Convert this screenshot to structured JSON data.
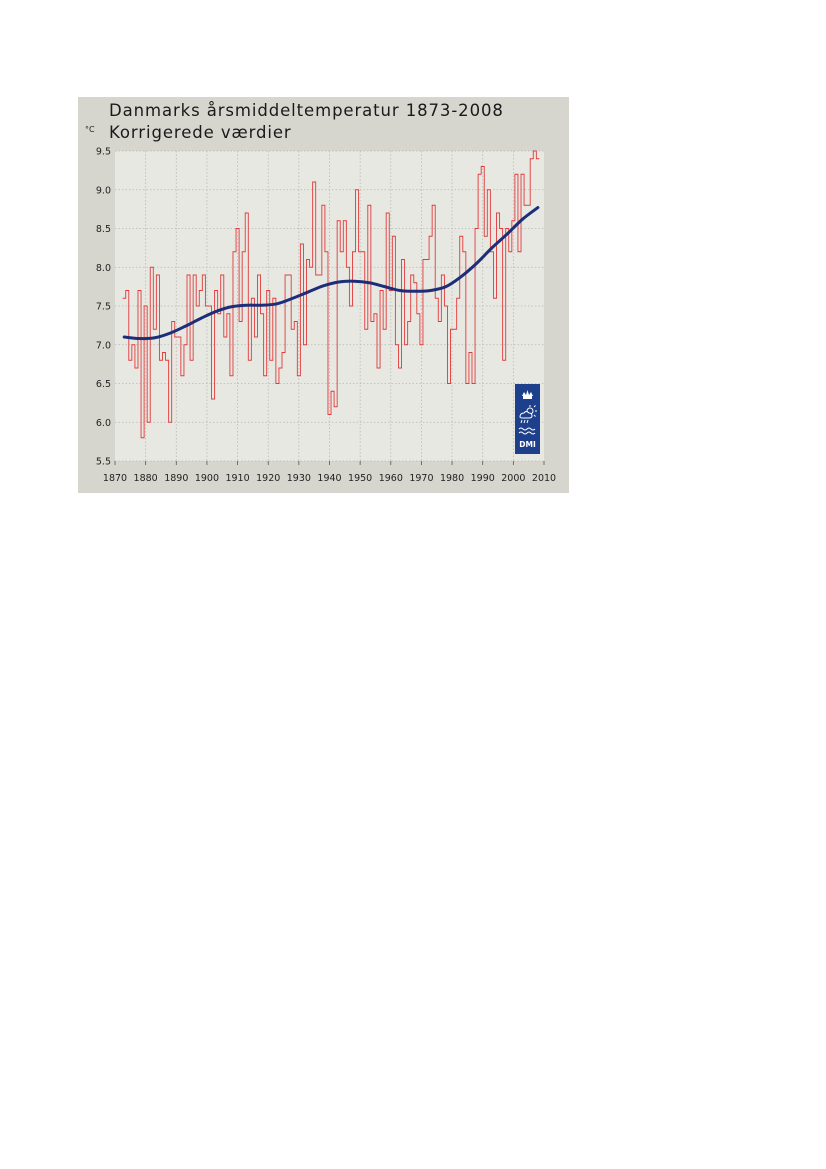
{
  "chart_data": {
    "type": "line",
    "title": "Danmarks årsmiddeltemperatur 1873-2008",
    "subtitle": "Korrigerede værdier",
    "ylabel": "°C",
    "xlabel": "",
    "xlim": [
      1870,
      2010
    ],
    "ylim": [
      5.5,
      9.5
    ],
    "x_ticks": [
      "1870",
      "1880",
      "1890",
      "1900",
      "1910",
      "1920",
      "1930",
      "1940",
      "1950",
      "1960",
      "1970",
      "1980",
      "1990",
      "2000",
      "2010"
    ],
    "y_ticks": [
      "9.5",
      "9.0",
      "8.5",
      "8.0",
      "7.5",
      "7.0",
      "6.5",
      "6.0",
      "5.5"
    ],
    "grid": true,
    "logo_text": "DMI",
    "series": [
      {
        "name": "",
        "style": "step",
        "color": "#e23a3a",
        "x": [
          1873,
          1874,
          1875,
          1876,
          1877,
          1878,
          1879,
          1880,
          1881,
          1882,
          1883,
          1884,
          1885,
          1886,
          1887,
          1888,
          1889,
          1890,
          1891,
          1892,
          1893,
          1894,
          1895,
          1896,
          1897,
          1898,
          1899,
          1900,
          1901,
          1902,
          1903,
          1904,
          1905,
          1906,
          1907,
          1908,
          1909,
          1910,
          1911,
          1912,
          1913,
          1914,
          1915,
          1916,
          1917,
          1918,
          1919,
          1920,
          1921,
          1922,
          1923,
          1924,
          1925,
          1926,
          1927,
          1928,
          1929,
          1930,
          1931,
          1932,
          1933,
          1934,
          1935,
          1936,
          1937,
          1938,
          1939,
          1940,
          1941,
          1942,
          1943,
          1944,
          1945,
          1946,
          1947,
          1948,
          1949,
          1950,
          1951,
          1952,
          1953,
          1954,
          1955,
          1956,
          1957,
          1958,
          1959,
          1960,
          1961,
          1962,
          1963,
          1964,
          1965,
          1966,
          1967,
          1968,
          1969,
          1970,
          1971,
          1972,
          1973,
          1974,
          1975,
          1976,
          1977,
          1978,
          1979,
          1980,
          1981,
          1982,
          1983,
          1984,
          1985,
          1986,
          1987,
          1988,
          1989,
          1990,
          1991,
          1992,
          1993,
          1994,
          1995,
          1996,
          1997,
          1998,
          1999,
          2000,
          2001,
          2002,
          2003,
          2004,
          2005,
          2006,
          2007,
          2008
        ],
        "values": [
          7.6,
          7.7,
          6.8,
          7.0,
          6.7,
          7.7,
          5.8,
          7.5,
          6.0,
          8.0,
          7.2,
          7.9,
          6.8,
          6.9,
          6.8,
          6.0,
          7.3,
          7.1,
          7.1,
          6.6,
          7.0,
          7.9,
          6.8,
          7.9,
          7.5,
          7.7,
          7.9,
          7.5,
          7.5,
          6.3,
          7.7,
          7.4,
          7.9,
          7.1,
          7.4,
          6.6,
          8.2,
          8.5,
          7.3,
          8.2,
          8.7,
          6.8,
          7.6,
          7.1,
          7.9,
          7.4,
          6.6,
          7.7,
          6.8,
          7.6,
          6.5,
          6.7,
          6.9,
          7.9,
          7.9,
          7.2,
          7.3,
          6.6,
          8.3,
          7.0,
          8.1,
          8.0,
          9.1,
          7.9,
          7.9,
          8.8,
          8.2,
          6.1,
          6.4,
          6.2,
          8.6,
          8.2,
          8.6,
          8.0,
          7.5,
          8.2,
          9.0,
          8.2,
          8.2,
          7.2,
          8.8,
          7.3,
          7.4,
          6.7,
          7.7,
          7.2,
          8.7,
          7.7,
          8.4,
          7.0,
          6.7,
          8.1,
          7.0,
          7.3,
          7.9,
          7.8,
          7.4,
          7.0,
          8.1,
          8.1,
          8.4,
          8.8,
          7.6,
          7.3,
          7.9,
          7.5,
          6.5,
          7.2,
          7.2,
          7.6,
          8.4,
          8.2,
          6.5,
          6.9,
          6.5,
          8.5,
          9.2,
          9.3,
          8.4,
          9.0,
          8.2,
          7.6,
          8.7,
          8.5,
          6.8,
          8.5,
          8.2,
          8.6,
          9.2,
          8.2,
          9.2,
          8.8,
          8.8,
          9.4,
          9.5,
          9.4
        ]
      },
      {
        "name": "",
        "style": "smooth",
        "color": "#1e2d78",
        "x": [
          1873,
          1878,
          1883,
          1888,
          1893,
          1898,
          1903,
          1908,
          1913,
          1918,
          1923,
          1928,
          1933,
          1938,
          1943,
          1948,
          1953,
          1958,
          1963,
          1968,
          1973,
          1978,
          1983,
          1988,
          1993,
          1998,
          2003,
          2008
        ],
        "values": [
          7.1,
          7.08,
          7.09,
          7.15,
          7.24,
          7.34,
          7.43,
          7.49,
          7.51,
          7.51,
          7.53,
          7.6,
          7.68,
          7.76,
          7.81,
          7.82,
          7.8,
          7.75,
          7.7,
          7.69,
          7.7,
          7.75,
          7.88,
          8.05,
          8.25,
          8.43,
          8.62,
          8.77
        ]
      }
    ]
  }
}
